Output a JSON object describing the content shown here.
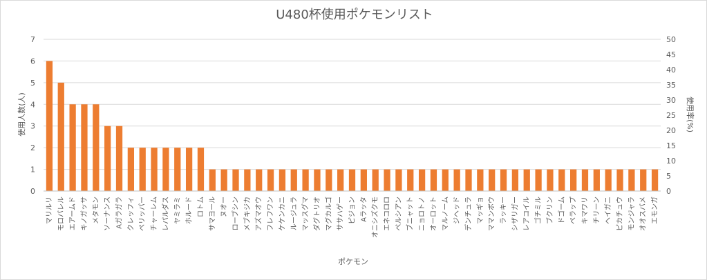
{
  "chart_data": {
    "type": "bar",
    "title": "U480杯使用ポケモンリスト",
    "xlabel": "ポケモン",
    "ylabel": "使用人数(人)",
    "y2label": "使用率(%)",
    "ylim": [
      0,
      7
    ],
    "yticks": [
      0,
      1,
      2,
      3,
      4,
      5,
      6,
      7
    ],
    "y2lim": [
      0,
      50
    ],
    "y2ticks": [
      0,
      5,
      10,
      15,
      20,
      25,
      30,
      35,
      40,
      45,
      50
    ],
    "grid": true,
    "bar_color": "#ed7d31",
    "categories": [
      "マリルリ",
      "モロバレル",
      "エアームド",
      "キノガッサ",
      "メタモン",
      "ソーナンス",
      "Aガラガラ",
      "クレッフィ",
      "ペリッパー",
      "チャーレム",
      "レパルダス",
      "ヤミラミ",
      "ホルード",
      "ロトム",
      "サマヨール",
      "ヌオー",
      "ローブシン",
      "メブキジカ",
      "アズマオウ",
      "フレフワン",
      "ケケンカニ",
      "ルージュラ",
      "マッスグマ",
      "ダグトリオ",
      "マグカルゴ",
      "ササハゲー",
      "ピジョン",
      "Aラッタ",
      "オニシズクモ",
      "エネコロロ",
      "ペルシアン",
      "ブニャット",
      "ニョロトノ",
      "オーロット",
      "マルノーム",
      "ジヘッド",
      "デンチュラ",
      "マッギョ",
      "ママンボウ",
      "ラッキー",
      "シザリガー",
      "レアコイル",
      "ゴチミル",
      "ブクリン",
      "ドゴーム",
      "ペラップ",
      "キマワリ",
      "チリーン",
      "ヘイガニ",
      "ピカチュウ",
      "モンジャラ",
      "オオスバメ",
      "エモンガ"
    ],
    "values": [
      6,
      5,
      4,
      4,
      4,
      3,
      3,
      2,
      2,
      2,
      2,
      2,
      2,
      2,
      1,
      1,
      1,
      1,
      1,
      1,
      1,
      1,
      1,
      1,
      1,
      1,
      1,
      1,
      1,
      1,
      1,
      1,
      1,
      1,
      1,
      1,
      1,
      1,
      1,
      1,
      1,
      1,
      1,
      1,
      1,
      1,
      1,
      1,
      1,
      1,
      1,
      1,
      1
    ]
  }
}
